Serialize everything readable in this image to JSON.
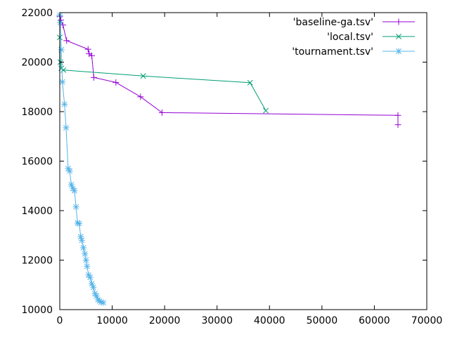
{
  "chart_data": {
    "type": "line",
    "title": "",
    "xlabel": "",
    "ylabel": "",
    "xlim": [
      0,
      70000
    ],
    "ylim": [
      10000,
      22000
    ],
    "x_ticks": [
      0,
      10000,
      20000,
      30000,
      40000,
      50000,
      60000,
      70000
    ],
    "y_ticks": [
      10000,
      12000,
      14000,
      16000,
      18000,
      20000,
      22000
    ],
    "x_tick_labels": [
      "0",
      "10000",
      "20000",
      "30000",
      "40000",
      "50000",
      "60000",
      "70000"
    ],
    "y_tick_labels": [
      "10000",
      "12000",
      "14000",
      "16000",
      "18000",
      "20000",
      "22000"
    ],
    "grid": false,
    "legend_position": "top-right",
    "series": [
      {
        "name": "'baseline-ga.tsv'",
        "color": "#9400d3",
        "marker": "plus",
        "x": [
          0,
          200,
          600,
          1300,
          5400,
          5600,
          6100,
          6500,
          10700,
          15400,
          19500,
          64500,
          64500
        ],
        "y": [
          21850,
          21700,
          21500,
          20870,
          20520,
          20340,
          20260,
          19380,
          19180,
          18600,
          17960,
          17850,
          17470
        ]
      },
      {
        "name": "'local.tsv'",
        "color": "#009e73",
        "marker": "cross",
        "x": [
          0,
          100,
          300,
          700,
          15900,
          36300,
          39300
        ],
        "y": [
          21000,
          20000,
          19750,
          19680,
          19440,
          19170,
          18040
        ]
      },
      {
        "name": "'tournament.tsv'",
        "color": "#56b4e9",
        "marker": "star",
        "x": [
          0,
          100,
          300,
          500,
          900,
          1200,
          1600,
          1900,
          2200,
          2500,
          2800,
          3100,
          3400,
          3700,
          4000,
          4200,
          4500,
          4800,
          5000,
          5200,
          5500,
          5800,
          6100,
          6400,
          6700,
          7000,
          7300,
          7600,
          7900,
          8300
        ],
        "y": [
          21900,
          21600,
          20500,
          19200,
          18300,
          17350,
          15700,
          15600,
          15050,
          14900,
          14800,
          14150,
          13500,
          13480,
          12950,
          12800,
          12500,
          12250,
          12000,
          11750,
          11400,
          11300,
          11050,
          10900,
          10650,
          10550,
          10400,
          10350,
          10300,
          10280
        ]
      }
    ]
  }
}
